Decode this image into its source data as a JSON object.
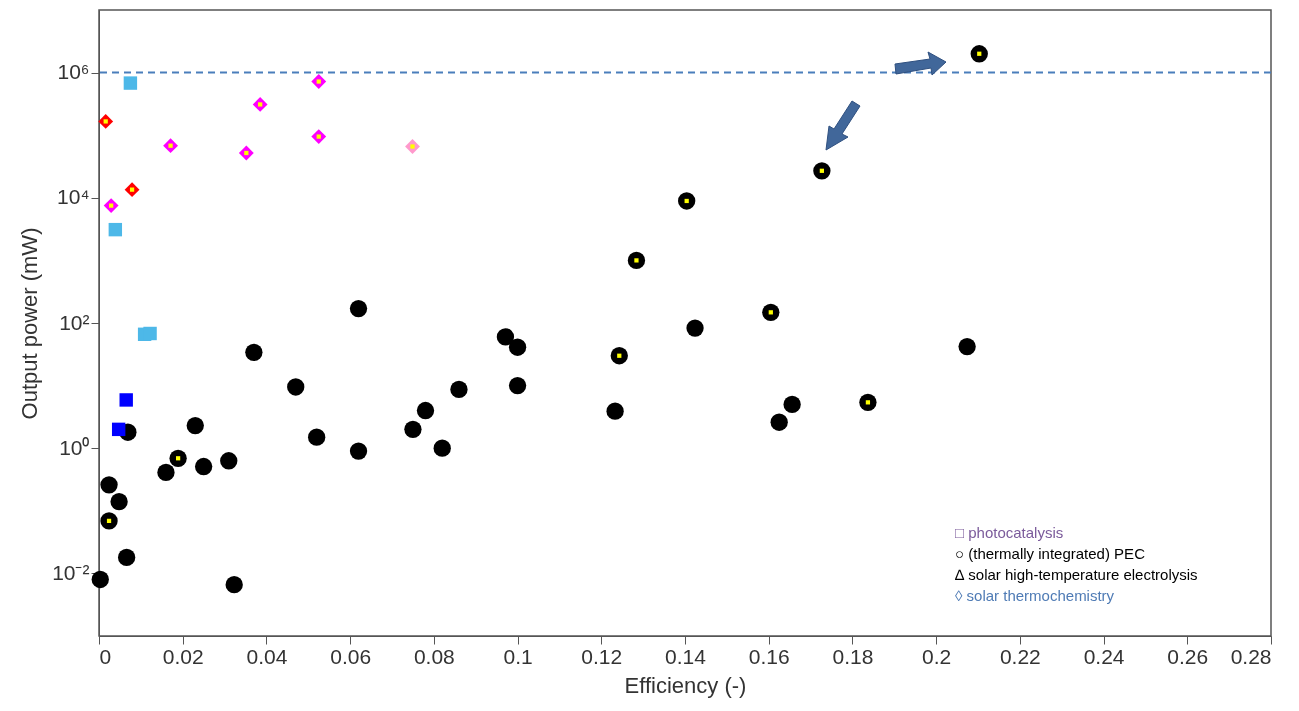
{
  "chart_data": {
    "type": "scatter",
    "xlabel": "Efficiency (-)",
    "ylabel": "Output power (mW)",
    "log": "y",
    "xlim": [
      0,
      0.28
    ],
    "xticks": [
      0,
      0.02,
      0.04,
      0.06,
      0.08,
      0.1,
      0.12,
      0.14,
      0.16,
      0.18,
      0.2,
      0.22,
      0.24,
      0.26,
      0.28
    ],
    "ylim": [
      0.001,
      10000000
    ],
    "yticks": [
      {
        "value": 0.01,
        "label": "10⁻²"
      },
      {
        "value": 1,
        "label": "10⁰"
      },
      {
        "value": 100,
        "label": "10²"
      },
      {
        "value": 10000,
        "label": "10⁴"
      },
      {
        "value": 1000000,
        "label": "10⁶"
      }
    ],
    "grid": false,
    "series": [
      {
        "type": "scatter",
        "marker": "circle",
        "color": "#000000",
        "x": [
          0.037,
          0.047,
          0.0069,
          0.023,
          0.052,
          0.075,
          0.078,
          0.082,
          0.062,
          0.016,
          0.025,
          0.031,
          0.0024,
          0.0048,
          0.0066,
          0.0003,
          0.0323,
          0.062,
          0.0971,
          0.1,
          0.1424,
          0.2074,
          0.086,
          0.1,
          0.1233,
          0.1625,
          0.1656,
          0.0189,
          0.0024,
          0.1243,
          0.1605,
          0.1837,
          0.1284,
          0.1404,
          0.1727,
          0.2103
        ],
        "values": [
          34,
          9.5,
          1.8,
          2.3,
          1.5,
          2.0,
          4.0,
          1.0,
          0.9,
          0.41,
          0.51,
          0.63,
          0.26,
          0.14,
          0.018,
          0.008,
          0.0066,
          170,
          60,
          41,
          83,
          42,
          8.7,
          10,
          3.9,
          2.6,
          5.0,
          0.69,
          0.069,
          30,
          148,
          5.4,
          1000,
          8900,
          27000,
          2000000
        ]
      },
      {
        "type": "scatter",
        "marker": "square",
        "colors": [
          "#4db8e8",
          "#4db8e8",
          "#4db8e8",
          "#4db8e8",
          "#0000ff",
          "#0000ff"
        ],
        "x": [
          0.0075,
          0.0039,
          0.0109,
          0.0122,
          0.0065,
          0.0047
        ],
        "values": [
          680000,
          3100,
          66,
          68,
          5.9,
          2.0
        ]
      },
      {
        "type": "scatter",
        "marker": "diamond",
        "colors": [
          "#ff00ff",
          "#ff00ff",
          "#ff00ff",
          "#ff00ff",
          "#ff00ff",
          "#ff00ff",
          "#ff0000",
          "#ff0000",
          "#ff99cc"
        ],
        "x": [
          0.0029,
          0.0171,
          0.0352,
          0.0385,
          0.0525,
          0.0525,
          0.0016,
          0.0079,
          0.0749
        ],
        "values": [
          7500,
          68000,
          52000,
          310000,
          720000,
          95000,
          166000,
          13500,
          66000
        ]
      },
      {
        "type": "scatter",
        "marker": "square",
        "color": "#ffff00",
        "x": [
          0.0189,
          0.0024,
          0.1243,
          0.1605,
          0.1837,
          0.1284,
          0.1404,
          0.1727,
          0.2103,
          0.0029,
          0.0171,
          0.0352,
          0.0385,
          0.0525,
          0.0525,
          0.0016,
          0.0079,
          0.0749
        ],
        "values": [
          0.69,
          0.069,
          30,
          148,
          5.4,
          1000,
          8900,
          27000,
          2000000,
          7500,
          68000,
          52000,
          310000,
          720000,
          95000,
          166000,
          13500,
          66000
        ]
      }
    ],
    "ref_lines": [
      {
        "axis": "y",
        "value": 1000000,
        "color": "#4a7ebb",
        "line_style": "dashed"
      }
    ],
    "annotations": [
      "□ photocatalysis",
      "○ (thermally integrated) PEC",
      "∆ solar high-temperature electrolysis",
      "◊ solar thermochemistry"
    ]
  }
}
